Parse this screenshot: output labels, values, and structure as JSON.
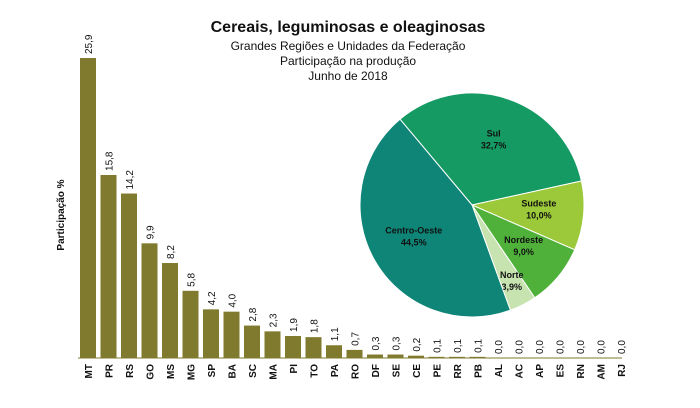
{
  "chart_data": [
    {
      "type": "bar",
      "title": "Cereais, leguminosas e oleaginosas",
      "subtitles": [
        "Grandes Regiões e Unidades da Federação",
        "Participação na produção",
        "Junho de 2018"
      ],
      "ylabel": "Participação %",
      "color": "#7f7a2e",
      "categories": [
        "MT",
        "PR",
        "RS",
        "GO",
        "MS",
        "MG",
        "SP",
        "BA",
        "SC",
        "MA",
        "PI",
        "TO",
        "PA",
        "RO",
        "DF",
        "SE",
        "CE",
        "PE",
        "RR",
        "PB",
        "AL",
        "AC",
        "AP",
        "ES",
        "RN",
        "AM",
        "RJ"
      ],
      "values": [
        25.9,
        15.8,
        14.2,
        9.9,
        8.2,
        5.8,
        4.2,
        4.0,
        2.8,
        2.3,
        1.9,
        1.8,
        1.1,
        0.7,
        0.3,
        0.3,
        0.2,
        0.1,
        0.1,
        0.1,
        0.0,
        0.0,
        0.0,
        0.0,
        0.0,
        0.0,
        0.0
      ],
      "value_labels": [
        "25,9",
        "15,8",
        "14,2",
        "9,9",
        "8,2",
        "5,8",
        "4,2",
        "4,0",
        "2,8",
        "2,3",
        "1,9",
        "1,8",
        "1,1",
        "0,7",
        "0,3",
        "0,3",
        "0,2",
        "0,1",
        "0,1",
        "0,1",
        "0,0",
        "0,0",
        "0,0",
        "0,0",
        "0,0",
        "0,0",
        "0,0"
      ]
    },
    {
      "type": "pie",
      "categories": [
        "Sul",
        "Sudeste",
        "Nordeste",
        "Norte",
        "Centro-Oeste"
      ],
      "values": [
        32.7,
        10.0,
        9.0,
        3.9,
        44.5
      ],
      "value_labels": [
        "32,7%",
        "10,0%",
        "9,0%",
        "3,9%",
        "44,5%"
      ],
      "colors": [
        "#149a62",
        "#9cc93a",
        "#4fb13a",
        "#c7e3b0",
        "#0e8577"
      ]
    }
  ]
}
